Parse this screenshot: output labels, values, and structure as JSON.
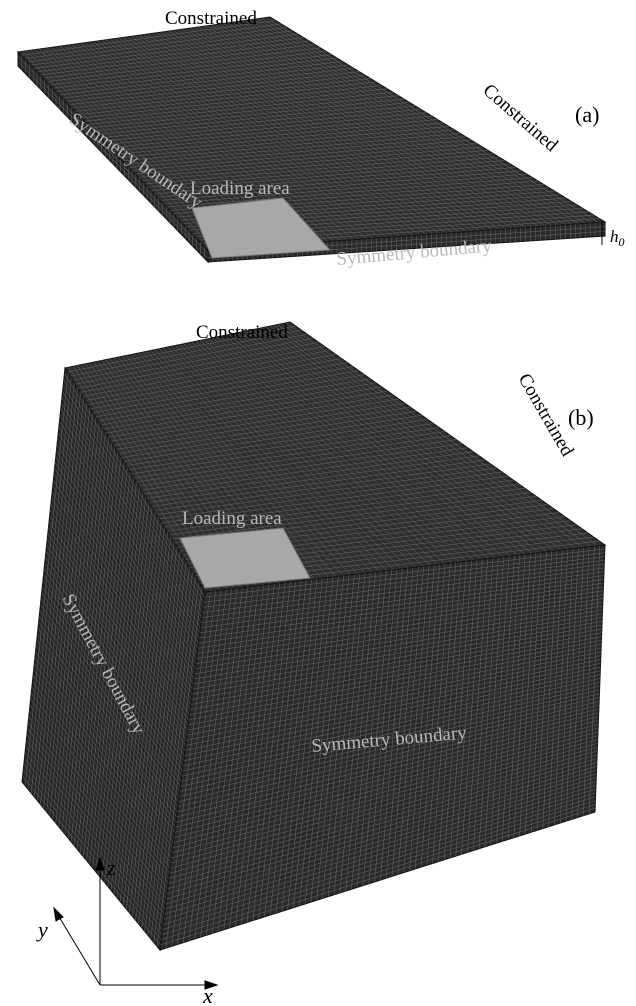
{
  "panel_a": {
    "label": "(a)",
    "top_label": "Constrained",
    "right_label": "Constrained",
    "left_label": "Symmetry boundary",
    "front_label": "Symmetry boundary",
    "loading_label": "Loading area",
    "thickness_symbol": "h",
    "thickness_subscript": "0"
  },
  "panel_b": {
    "label": "(b)",
    "top_label": "Constrained",
    "right_label": "Constrained",
    "left_label": "Symmetry boundary",
    "front_label": "Symmetry boundary",
    "loading_label": "Loading area"
  },
  "axes": {
    "x": "x",
    "y": "y",
    "z": "z"
  }
}
